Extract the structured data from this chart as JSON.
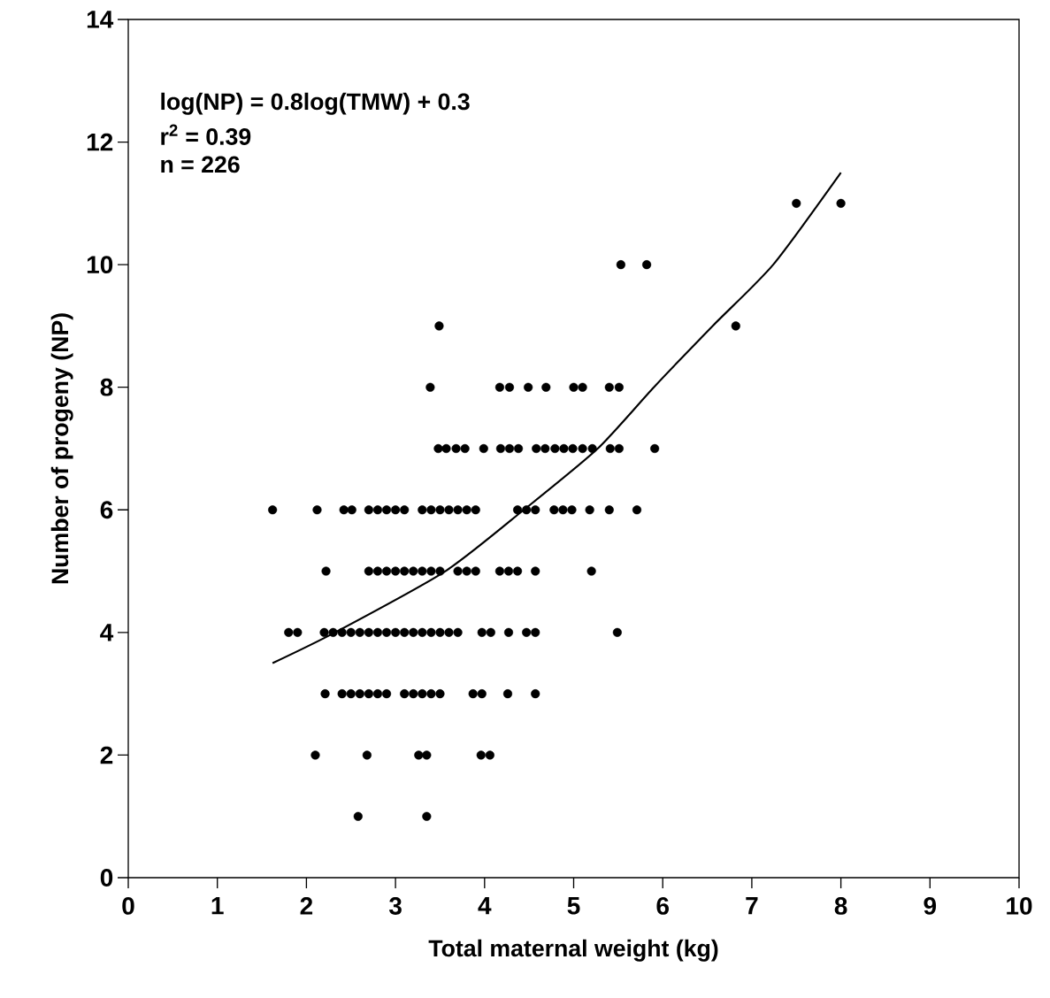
{
  "chart_data": {
    "type": "scatter",
    "xlabel": "Total maternal weight (kg)",
    "ylabel": "Number of progeny (NP)",
    "annotations": [
      "log(NP) = 0.8log(TMW) + 0.3",
      "r$^{2}$ = 0.39",
      "n = 226"
    ],
    "series": [
      {
        "color": "#000000",
        "marker": "circle",
        "x": [
          7.5,
          8.0,
          5.53,
          5.82,
          3.49,
          6.82,
          3.39,
          4.17,
          4.28,
          4.49,
          4.69,
          5.0,
          5.1,
          5.4,
          5.51,
          3.48,
          3.57,
          3.68,
          3.78,
          3.99,
          4.18,
          4.28,
          4.38,
          4.58,
          4.68,
          4.79,
          4.89,
          4.99,
          5.1,
          5.21,
          5.41,
          5.51,
          5.91,
          1.62,
          2.12,
          2.42,
          2.51,
          2.7,
          2.8,
          2.9,
          3.0,
          3.1,
          3.3,
          3.4,
          3.5,
          3.6,
          3.7,
          3.8,
          3.9,
          4.37,
          4.47,
          4.57,
          4.78,
          4.88,
          4.98,
          5.18,
          5.4,
          5.71,
          2.22,
          2.7,
          2.8,
          2.9,
          3.0,
          3.1,
          3.2,
          3.3,
          3.4,
          3.5,
          3.7,
          3.8,
          3.9,
          4.17,
          4.27,
          4.37,
          4.57,
          5.2,
          1.8,
          1.9,
          2.2,
          2.3,
          2.4,
          2.5,
          2.6,
          2.7,
          2.8,
          2.9,
          3.0,
          3.1,
          3.2,
          3.3,
          3.4,
          3.5,
          3.6,
          3.7,
          3.97,
          4.07,
          4.27,
          4.47,
          4.57,
          5.49,
          2.21,
          2.4,
          2.5,
          2.6,
          2.7,
          2.8,
          2.9,
          3.1,
          3.2,
          3.3,
          3.4,
          3.5,
          3.87,
          3.97,
          4.26,
          4.57,
          2.1,
          2.68,
          3.26,
          3.35,
          3.96,
          4.06,
          2.58,
          3.35
        ],
        "values": [
          11,
          11,
          10,
          10,
          9,
          9,
          8,
          8,
          8,
          8,
          8,
          8,
          8,
          8,
          8,
          7,
          7,
          7,
          7,
          7,
          7,
          7,
          7,
          7,
          7,
          7,
          7,
          7,
          7,
          7,
          7,
          7,
          7,
          6,
          6,
          6,
          6,
          6,
          6,
          6,
          6,
          6,
          6,
          6,
          6,
          6,
          6,
          6,
          6,
          6,
          6,
          6,
          6,
          6,
          6,
          6,
          6,
          6,
          5,
          5,
          5,
          5,
          5,
          5,
          5,
          5,
          5,
          5,
          5,
          5,
          5,
          5,
          5,
          5,
          5,
          5,
          4,
          4,
          4,
          4,
          4,
          4,
          4,
          4,
          4,
          4,
          4,
          4,
          4,
          4,
          4,
          4,
          4,
          4,
          4,
          4,
          4,
          4,
          4,
          4,
          3,
          3,
          3,
          3,
          3,
          3,
          3,
          3,
          3,
          3,
          3,
          3,
          3,
          3,
          3,
          3,
          2,
          2,
          2,
          2,
          2,
          2,
          1,
          1
        ]
      },
      {
        "type": "line",
        "color": "#000000",
        "marker": "none",
        "x": [
          1.62,
          2.32,
          3.56,
          4.44,
          5.27,
          5.9,
          6.56,
          7.24,
          8.0
        ],
        "values": [
          3.5,
          4.0,
          5.0,
          6.0,
          7.0,
          8.0,
          9.0,
          10.0,
          11.5
        ]
      }
    ],
    "xlim": [
      0,
      10
    ],
    "ylim": [
      0,
      14
    ],
    "xticks": [
      0,
      1,
      2,
      3,
      4,
      5,
      6,
      7,
      8,
      9,
      10
    ],
    "yticks": [
      0,
      2,
      4,
      6,
      8,
      10,
      12,
      14
    ],
    "grid": false
  }
}
